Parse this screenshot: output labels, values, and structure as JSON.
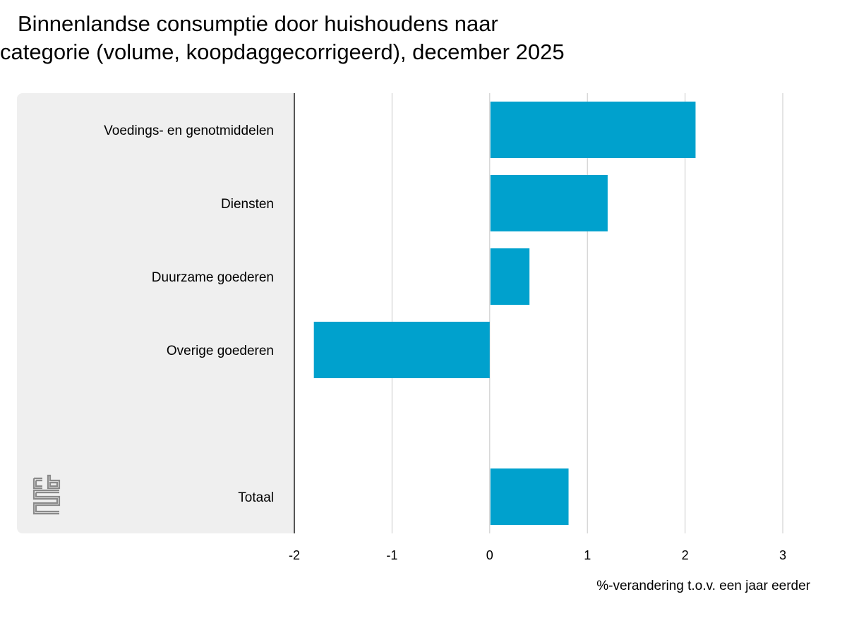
{
  "chart_data": {
    "type": "bar",
    "orientation": "horizontal",
    "title_line1": "Binnenlandse consumptie door huishoudens naar",
    "title_line2": "categorie (volume, koopdaggecorrigeerd), december 2025",
    "categories": [
      "Voedings- en genotmiddelen",
      "Diensten",
      "Duurzame goederen",
      "Overige goederen",
      "",
      "Totaal"
    ],
    "values": [
      2.1,
      1.2,
      0.4,
      -1.8,
      null,
      0.8
    ],
    "xlabel": "%-verandering t.o.v. een jaar eerder",
    "ylabel": "",
    "xlim": [
      -2,
      3
    ],
    "xticks": [
      "-2",
      "-1",
      "0",
      "1",
      "2",
      "3"
    ],
    "grid": true,
    "bar_color": "#00a1cd",
    "panel_color": "#efefef",
    "logo": "cbs"
  }
}
